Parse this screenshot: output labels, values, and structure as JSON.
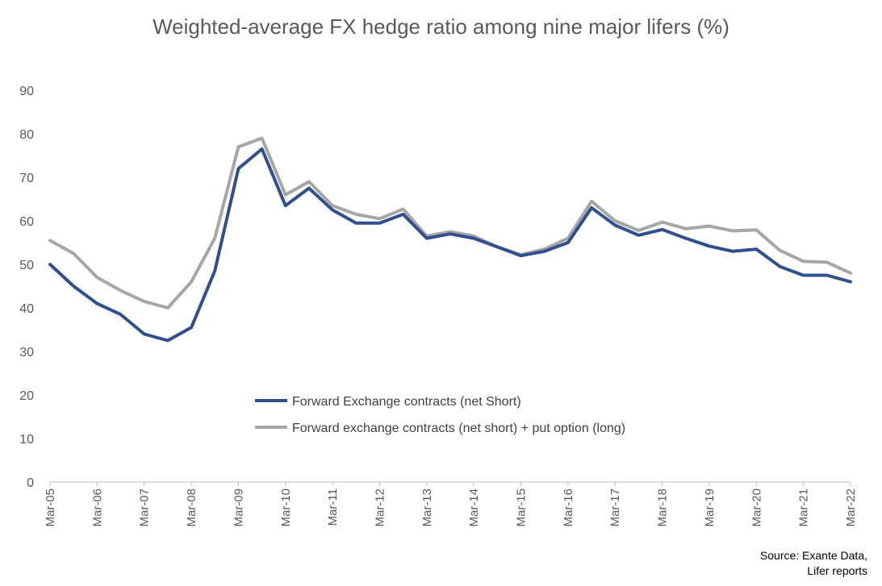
{
  "chart_data": {
    "type": "line",
    "title": "Weighted-average FX hedge ratio among nine major lifers (%)",
    "xlabel": "",
    "ylabel": "",
    "ylim": [
      0,
      90
    ],
    "yticks": [
      0,
      10,
      20,
      30,
      40,
      50,
      60,
      70,
      80,
      90
    ],
    "xtick_labels": [
      "Mar-05",
      "Mar-06",
      "Mar-07",
      "Mar-08",
      "Mar-09",
      "Mar-10",
      "Mar-11",
      "Mar-12",
      "Mar-13",
      "Mar-14",
      "Mar-15",
      "Mar-16",
      "Mar-17",
      "Mar-18",
      "Mar-19",
      "Mar-20",
      "Mar-21",
      "Mar-22"
    ],
    "x": [
      "Mar-05",
      "Sep-05",
      "Mar-06",
      "Sep-06",
      "Mar-07",
      "Sep-07",
      "Mar-08",
      "Sep-08",
      "Mar-09",
      "Sep-09",
      "Mar-10",
      "Sep-10",
      "Mar-11",
      "Sep-11",
      "Mar-12",
      "Sep-12",
      "Mar-13",
      "Sep-13",
      "Mar-14",
      "Sep-14",
      "Mar-15",
      "Sep-15",
      "Mar-16",
      "Sep-16",
      "Mar-17",
      "Sep-17",
      "Mar-18",
      "Sep-18",
      "Mar-19",
      "Sep-19",
      "Mar-20",
      "Sep-20",
      "Mar-21",
      "Sep-21",
      "Mar-22"
    ],
    "series": [
      {
        "name": "Forward Exchange contracts (net Short)",
        "color": "#2F4F8F",
        "values": [
          50,
          45,
          41,
          38.5,
          34,
          32.5,
          35.5,
          48.5,
          72,
          76.5,
          63.5,
          67.5,
          62.5,
          59.5,
          59.5,
          61.5,
          56,
          57,
          56,
          54,
          52,
          53,
          55,
          63,
          59,
          56.7,
          58,
          56,
          54.2,
          53,
          53.5,
          49.5,
          47.5,
          47.5,
          46
        ]
      },
      {
        "name": "Forward exchange contracts (net short) + put option (long)",
        "color": "#A6A6A6",
        "values": [
          55.5,
          52.5,
          47,
          44,
          41.5,
          40,
          46,
          56,
          77,
          79,
          66,
          69,
          63.5,
          61.5,
          60.5,
          62.7,
          56.5,
          57.5,
          56.5,
          54,
          52.2,
          53.5,
          56,
          64.5,
          60,
          57.8,
          59.7,
          58.2,
          58.8,
          57.7,
          57.9,
          53.2,
          50.7,
          50.5,
          48
        ]
      }
    ],
    "legend_position": "center",
    "grid": false
  },
  "source": {
    "line1": "Source: Exante Data,",
    "line2": "Lifer reports"
  }
}
